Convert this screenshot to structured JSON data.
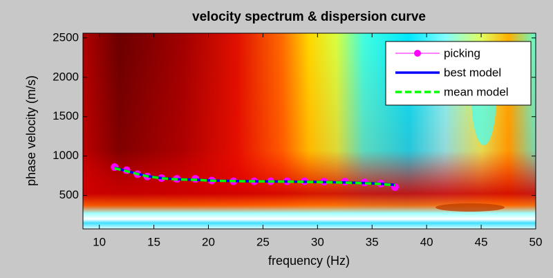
{
  "chart_data": {
    "type": "line",
    "title": "velocity spectrum & dispersion curve",
    "x_label": "frequency (Hz)",
    "y_label": "phase velocity (m/s)",
    "xlim": [
      8.5,
      50
    ],
    "ylim": [
      75,
      2560
    ],
    "xticks": [
      10,
      15,
      20,
      25,
      30,
      35,
      40,
      45,
      50
    ],
    "yticks": [
      500,
      1000,
      1500,
      2000,
      2500
    ],
    "grid": false,
    "legend": "upper right",
    "x": [
      11.4,
      12.5,
      13.5,
      14.4,
      15.7,
      17.1,
      18.8,
      20.3,
      22.3,
      24.2,
      25.7,
      27.2,
      28.8,
      30.6,
      32.5,
      34.3,
      35.8,
      37.1
    ],
    "series": [
      {
        "name": "picking",
        "color": "#ff00ff",
        "marker": "circle",
        "values": [
          860,
          820,
          770,
          740,
          720,
          710,
          710,
          690,
          680,
          680,
          680,
          680,
          680,
          675,
          675,
          665,
          650,
          605
        ]
      },
      {
        "name": "best model",
        "color": "#0000ff",
        "values": [
          850,
          810,
          775,
          745,
          720,
          705,
          700,
          690,
          683,
          680,
          678,
          676,
          673,
          670,
          665,
          658,
          648,
          635
        ]
      },
      {
        "name": "mean model",
        "color": "#00ff00",
        "dashed": true,
        "values": [
          845,
          808,
          772,
          743,
          718,
          704,
          698,
          688,
          682,
          679,
          677,
          675,
          672,
          668,
          663,
          655,
          645,
          630
        ]
      }
    ]
  }
}
